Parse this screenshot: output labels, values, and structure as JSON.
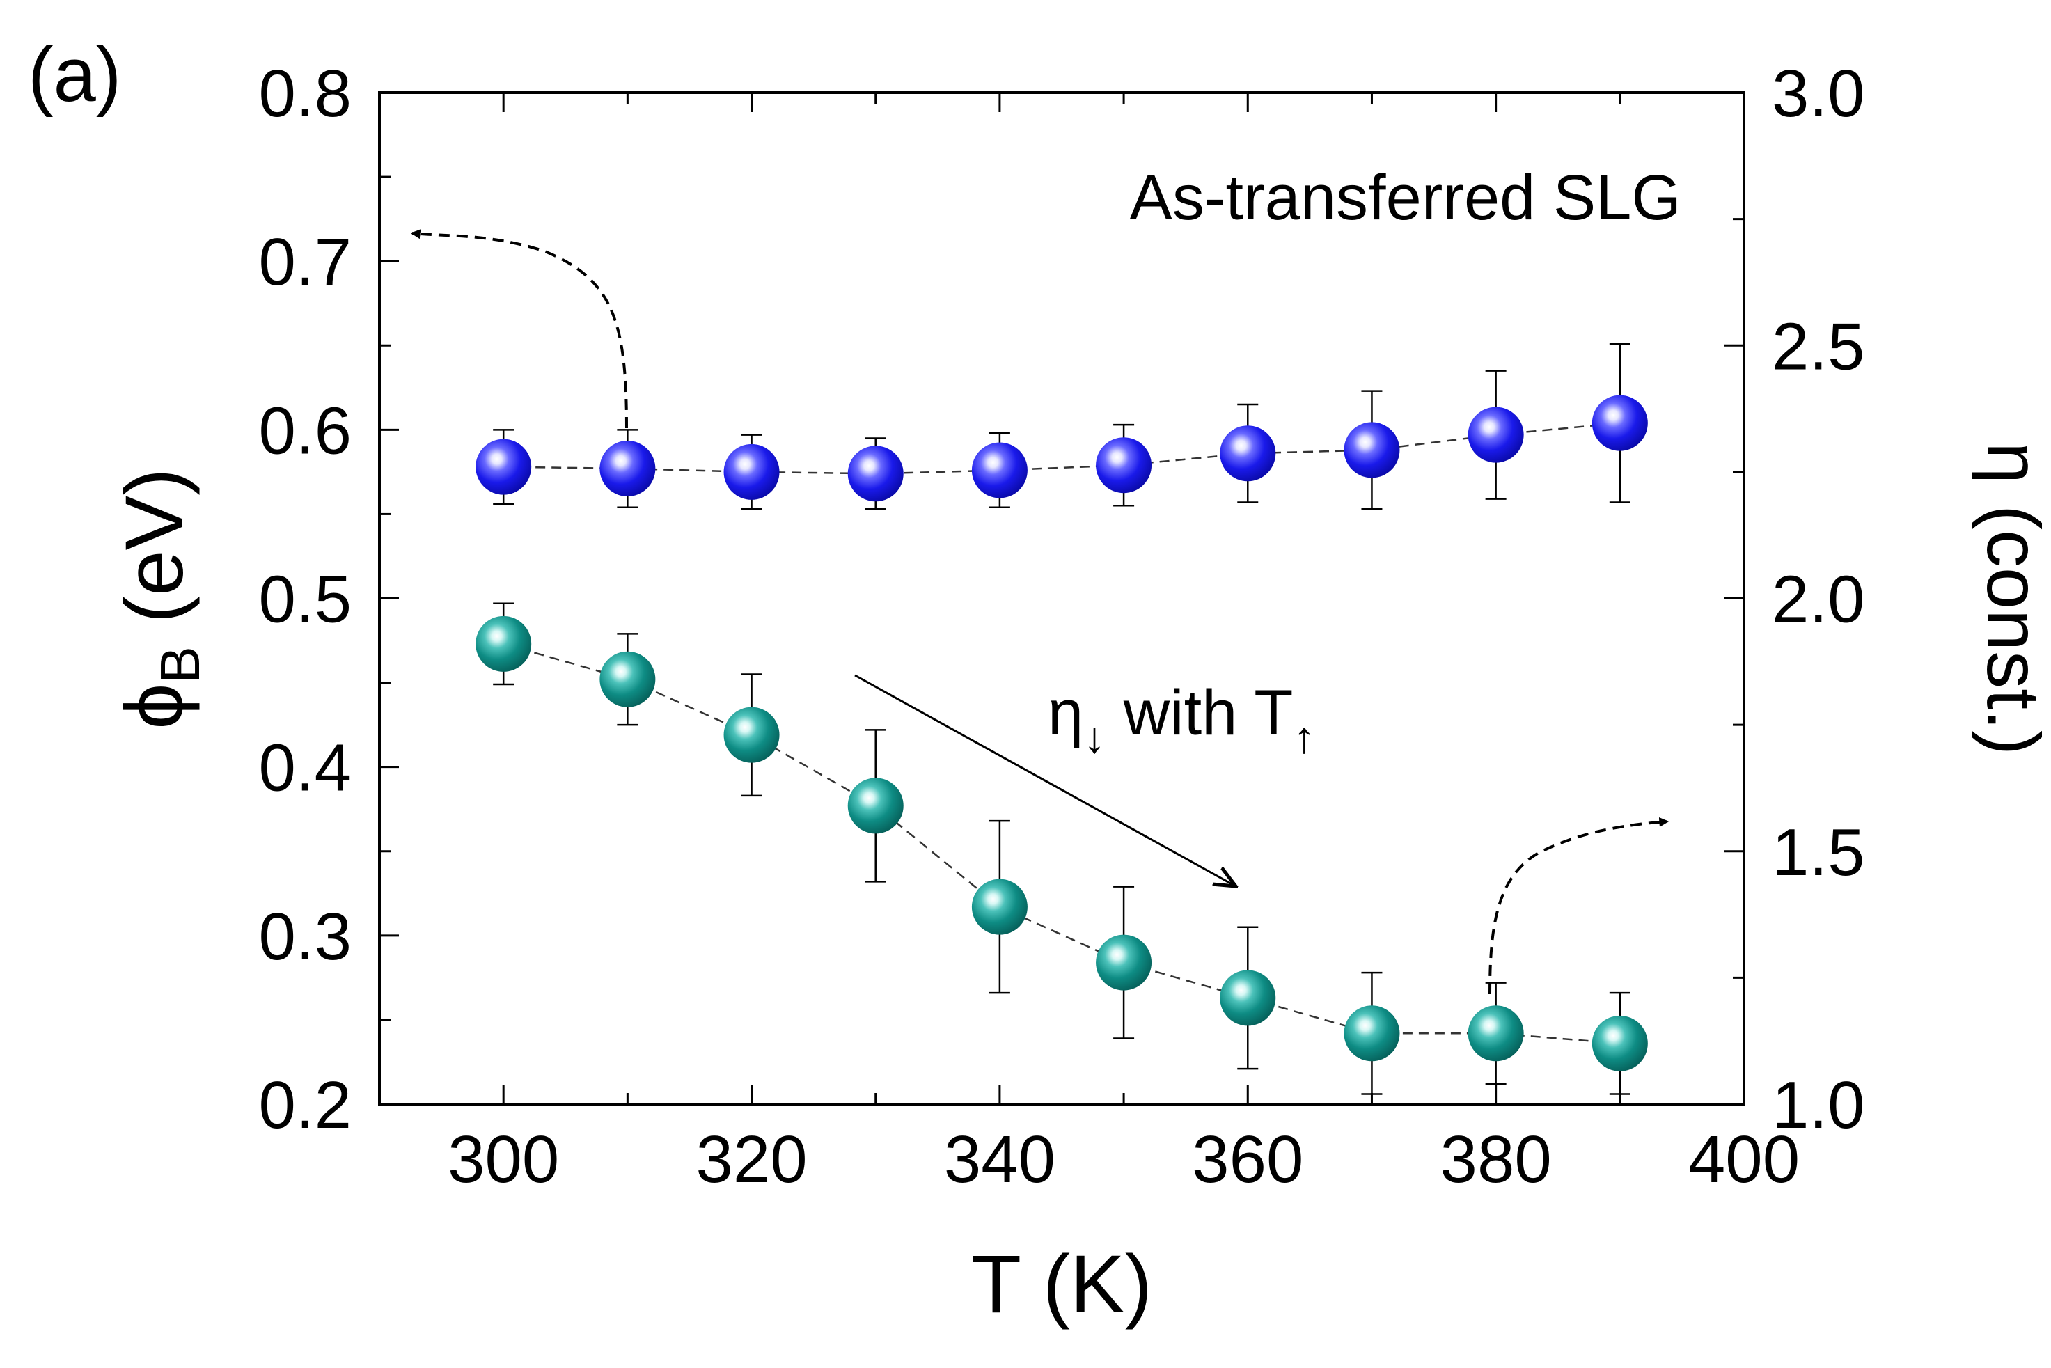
{
  "chart_data": {
    "type": "scatter",
    "panel_label": "(a)",
    "annotation": "As-transferred SLG",
    "arrow_note": {
      "eta": "η",
      "down": "↓",
      "with_t": " with T",
      "up": "↑"
    },
    "xlabel": "T (K)",
    "ylabel_left": {
      "phi": "ϕ",
      "sub": "B",
      "unit": " (eV)"
    },
    "ylabel_right": "η (const.)",
    "xlim": [
      290,
      400
    ],
    "ylim_left": [
      0.2,
      0.8
    ],
    "ylim_right": [
      1.0,
      3.0
    ],
    "x_ticks": [
      "300",
      "320",
      "340",
      "360",
      "380",
      "400"
    ],
    "y_ticks_left": [
      "0.2",
      "0.3",
      "0.4",
      "0.5",
      "0.6",
      "0.7",
      "0.8"
    ],
    "y_ticks_right": [
      "1.0",
      "1.5",
      "2.0",
      "2.5",
      "3.0"
    ],
    "series": [
      {
        "name": "phi_B",
        "axis": "left",
        "color": "#1f1fe0",
        "x": [
          300,
          310,
          320,
          330,
          340,
          350,
          360,
          370,
          380,
          390
        ],
        "y": [
          0.578,
          0.577,
          0.575,
          0.574,
          0.576,
          0.579,
          0.586,
          0.588,
          0.597,
          0.604
        ],
        "err": [
          0.022,
          0.023,
          0.022,
          0.021,
          0.022,
          0.024,
          0.029,
          0.035,
          0.038,
          0.047
        ]
      },
      {
        "name": "eta",
        "axis": "right",
        "color": "#0e8c84",
        "x": [
          300,
          310,
          320,
          330,
          340,
          350,
          360,
          370,
          380,
          390
        ],
        "y": [
          1.91,
          1.84,
          1.73,
          1.59,
          1.39,
          1.28,
          1.21,
          1.14,
          1.14,
          1.12
        ],
        "err": [
          0.08,
          0.09,
          0.12,
          0.15,
          0.17,
          0.15,
          0.14,
          0.12,
          0.1,
          0.1
        ]
      }
    ],
    "colors": {
      "axis": "#000000",
      "connector": "#333333"
    }
  }
}
